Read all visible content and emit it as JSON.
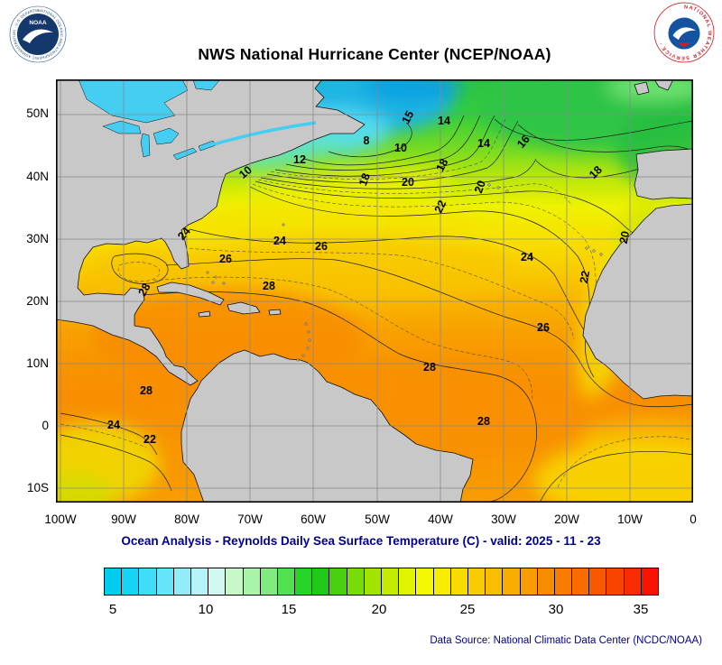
{
  "header": {
    "title": "NWS National Hurricane Center (NCEP/NOAA)"
  },
  "logos": {
    "noaa": {
      "acronym": "NOAA",
      "ring_text": "NATIONAL OCEANIC AND ATMOSPHERIC ADMINISTRATION · U.S. DEPARTMENT OF COMMERCE"
    },
    "nws": {
      "ring_text": "NATIONAL WEATHER SERVICE ·"
    }
  },
  "map": {
    "y_axis_labels": [
      "50N",
      "40N",
      "30N",
      "20N",
      "10N",
      "0",
      "10S"
    ],
    "x_axis_labels": [
      "100W",
      "90W",
      "80W",
      "70W",
      "60W",
      "50W",
      "40W",
      "30W",
      "20W",
      "10W",
      "0"
    ],
    "contour_labels": [
      "15",
      "14",
      "8",
      "10",
      "14",
      "16",
      "12",
      "10",
      "18",
      "20",
      "18",
      "20",
      "18",
      "22",
      "20",
      "24",
      "24",
      "26",
      "26",
      "24",
      "22",
      "28",
      "28",
      "26",
      "28",
      "28",
      "28",
      "24",
      "22"
    ]
  },
  "caption": "Ocean Analysis - Reynolds Daily Sea Surface Temperature (C) - valid: 2025 - 11 - 23",
  "colorbar": {
    "tick_labels": [
      "5",
      "10",
      "15",
      "20",
      "25",
      "30",
      "35"
    ],
    "colors": [
      "#00ccf0",
      "#18d4f4",
      "#40dcf8",
      "#68e4f8",
      "#90ecf8",
      "#b4f4f8",
      "#d0f8f0",
      "#c8f8c8",
      "#a8f4a8",
      "#80ec80",
      "#50e050",
      "#28d428",
      "#20c818",
      "#48d010",
      "#78dc08",
      "#a0e400",
      "#c4ec00",
      "#e0f400",
      "#f4f800",
      "#f8ec00",
      "#f8dc00",
      "#f8cc00",
      "#f8bc00",
      "#f8ac00",
      "#f89c00",
      "#f88c00",
      "#f87c00",
      "#f86c00",
      "#f85800",
      "#f84400",
      "#f82c00",
      "#f81400"
    ]
  },
  "footer": {
    "data_source": "Data Source: National Climatic Data Center (NCDC/NOAA)"
  }
}
